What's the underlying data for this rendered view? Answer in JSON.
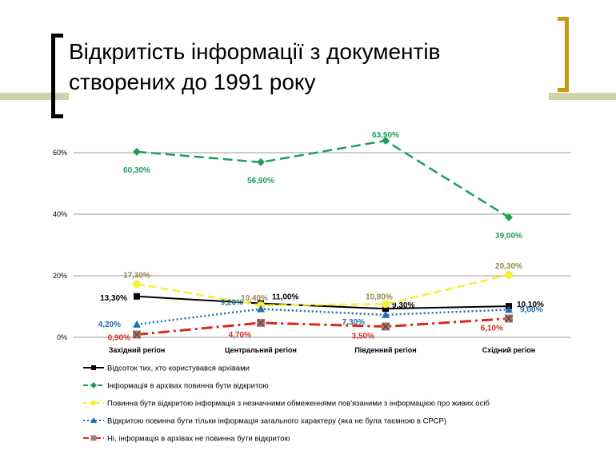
{
  "slide": {
    "title_line1": "Відкритість інформації з документів",
    "title_line2": "створених до 1991 року",
    "colors": {
      "title_bar": "#cfd3a8",
      "left_bracket": "#000000",
      "right_bracket": "#c99a0e"
    }
  },
  "chart_data": {
    "type": "line",
    "categories": [
      "Західний регіон",
      "Центральний регіон",
      "Південний регіон",
      "Східний регіон"
    ],
    "ylim": [
      0,
      60
    ],
    "yticks": [
      0,
      20,
      40,
      60
    ],
    "ytick_labels": [
      "0%",
      "20%",
      "40%",
      "60%"
    ],
    "grid": true,
    "legend_position": "bottom",
    "series": [
      {
        "name": "Відсоток тих, хто користувався архівами",
        "values": [
          13.3,
          11.0,
          9.3,
          10.1
        ],
        "labels": [
          "13,30%",
          "11,00%",
          "9,30%",
          "10,10%"
        ],
        "color": "#000000",
        "label_color": "#000000",
        "marker": "square",
        "dash": ""
      },
      {
        "name": "Інформація в архівах повинна бути відкритою",
        "values": [
          60.3,
          56.9,
          63.9,
          39.0
        ],
        "labels": [
          "60,30%",
          "56,90%",
          "63,90%",
          "39,00%"
        ],
        "color": "#1e9e5a",
        "label_color": "#1e9e5a",
        "marker": "diamond",
        "dash": "12,6"
      },
      {
        "name": "Повинна бути відкритою інформація з незначними обмеженнями пов'язаними з інформацією про живих осіб",
        "values": [
          17.3,
          10.4,
          10.8,
          20.3
        ],
        "labels": [
          "17,30%",
          "10,40%",
          "10,80%",
          "20,30%"
        ],
        "color": "#f5f03a",
        "label_color": "#948a54",
        "marker": "circle",
        "dash": "10,5"
      },
      {
        "name": "Відкритою повинна бути тільки інформація загального характеру (яка не була таємною в СРСР)",
        "values": [
          4.2,
          9.2,
          7.3,
          9.0
        ],
        "labels": [
          "4,20%",
          "9,20%",
          "7,30%",
          "9,00%"
        ],
        "color": "#1b6fb0",
        "label_color": "#1b6fb0",
        "marker": "triangle",
        "dash": "2,3"
      },
      {
        "name": "Ні, інформація в архівах не повинна бути відкритою",
        "values": [
          0.9,
          4.7,
          3.5,
          6.1
        ],
        "labels": [
          "0,90%",
          "4,70%",
          "3,50%",
          "6,10%"
        ],
        "color": "#d82a1e",
        "label_color": "#d82a1e",
        "marker": "xsquare",
        "dash": "14,5,3,5"
      }
    ]
  }
}
